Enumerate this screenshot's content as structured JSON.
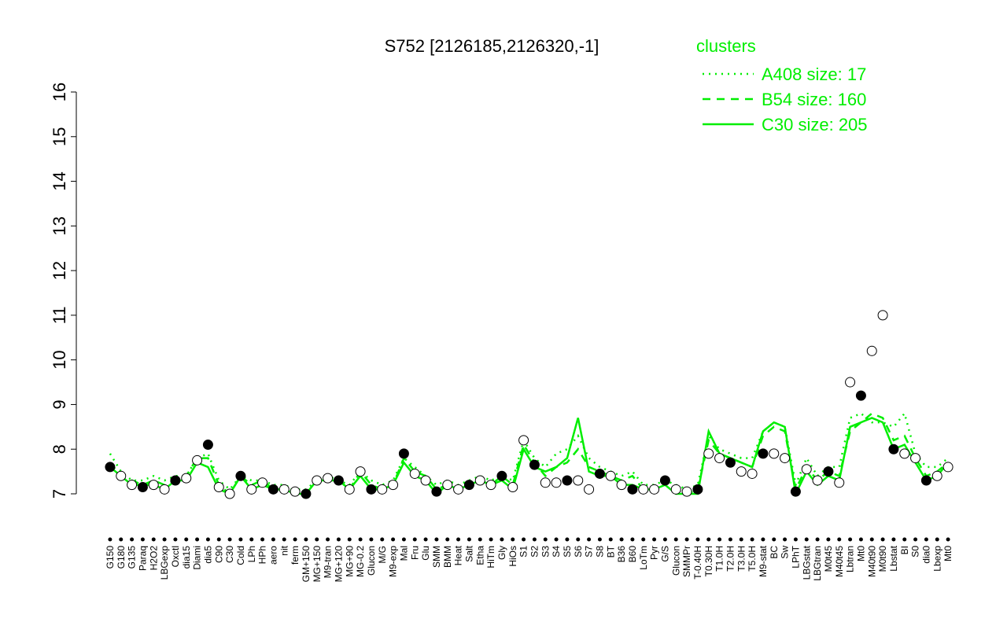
{
  "chart_data": {
    "type": "line",
    "title": "S752 [2126185,2126320,-1]",
    "legend_title": "clusters",
    "legend_color": "#00ee00",
    "point_color": "#000000",
    "categories": [
      "G150",
      "G180",
      "G135",
      "Paraq",
      "H2O2",
      "LBGexp",
      "Oxctl",
      "dia15",
      "Diami",
      "dia5",
      "C90",
      "C30",
      "Cold",
      "LPh",
      "HPh",
      "aero",
      "nit",
      "ferm",
      "GM+150",
      "MG+150",
      "M9-tran",
      "MG+120",
      "MG+90",
      "MG-0.2",
      "Glucon",
      "M/G",
      "M9-exp",
      "Mal",
      "Fru",
      "Glu",
      "SMM",
      "BMM",
      "Heat",
      "Salt",
      "Etha",
      "HiTm",
      "Gly",
      "HiOs",
      "S1",
      "S2",
      "S3",
      "S4",
      "S5",
      "S6",
      "S7",
      "S8",
      "BT",
      "B36",
      "B60",
      "LoTm",
      "Pyr",
      "G/S",
      "Glucon",
      "SMMPr",
      "T-0.40H",
      "T0.30H",
      "T1.0H",
      "T2.0H",
      "T3.0H",
      "T5.0H",
      "M9-stat",
      "BC",
      "Sw",
      "LPhT",
      "LBGstat",
      "LBGtran",
      "M0t45",
      "M40t45",
      "Lbtran",
      "Mt0",
      "M40t90",
      "M0t90",
      "Lbstat",
      "BI",
      "S0",
      "dia0",
      "Lbexp",
      "Mt0"
    ],
    "values": [
      7.6,
      7.4,
      7.2,
      7.15,
      7.2,
      7.1,
      7.3,
      7.35,
      7.75,
      8.1,
      7.15,
      7.0,
      7.4,
      7.1,
      7.25,
      7.1,
      7.1,
      7.05,
      7.0,
      7.3,
      7.35,
      7.3,
      7.1,
      7.5,
      7.1,
      7.1,
      7.2,
      7.9,
      7.45,
      7.3,
      7.05,
      7.2,
      7.1,
      7.2,
      7.3,
      7.2,
      7.4,
      7.15,
      8.2,
      7.65,
      7.25,
      7.25,
      7.3,
      7.3,
      7.1,
      7.45,
      7.4,
      7.2,
      7.1,
      7.1,
      7.1,
      7.3,
      7.1,
      7.05,
      7.1,
      7.9,
      7.8,
      7.7,
      7.5,
      7.45,
      7.9,
      7.9,
      7.8,
      7.05,
      7.55,
      7.3,
      7.5,
      7.25,
      9.5,
      9.2,
      10.2,
      11.0,
      8.0,
      7.9,
      7.8,
      7.3,
      7.4,
      7.6
    ],
    "series": [
      {
        "name": "A408 size: 17",
        "style": "dotted",
        "color": "#00ee00",
        "values": [
          7.9,
          7.5,
          7.3,
          7.3,
          7.4,
          7.3,
          7.4,
          7.4,
          7.8,
          7.9,
          7.3,
          7.1,
          7.4,
          7.3,
          7.3,
          7.2,
          7.2,
          7.1,
          7.1,
          7.3,
          7.4,
          7.3,
          7.2,
          7.5,
          7.3,
          7.2,
          7.3,
          7.8,
          7.6,
          7.4,
          7.2,
          7.3,
          7.2,
          7.3,
          7.4,
          7.3,
          7.4,
          7.3,
          8.2,
          7.8,
          7.6,
          7.9,
          8.0,
          8.3,
          7.8,
          7.6,
          7.5,
          7.4,
          7.5,
          7.2,
          7.2,
          7.3,
          7.2,
          7.1,
          7.2,
          8.3,
          8.0,
          7.9,
          7.8,
          7.8,
          8.4,
          8.6,
          8.5,
          7.2,
          7.8,
          7.4,
          7.6,
          7.6,
          8.7,
          8.8,
          8.6,
          8.6,
          8.5,
          8.8,
          7.9,
          7.6,
          7.6,
          7.8
        ]
      },
      {
        "name": "B54 size: 160",
        "style": "dashed",
        "color": "#00ee00",
        "values": [
          7.7,
          7.4,
          7.3,
          7.2,
          7.3,
          7.2,
          7.3,
          7.4,
          7.8,
          7.8,
          7.2,
          7.0,
          7.4,
          7.2,
          7.3,
          7.1,
          7.1,
          7.1,
          7.0,
          7.3,
          7.4,
          7.3,
          7.1,
          7.5,
          7.2,
          7.1,
          7.2,
          7.8,
          7.5,
          7.4,
          7.1,
          7.2,
          7.1,
          7.2,
          7.3,
          7.2,
          7.4,
          7.2,
          8.1,
          7.7,
          7.4,
          7.6,
          7.7,
          8.0,
          7.6,
          7.5,
          7.4,
          7.3,
          7.4,
          7.1,
          7.1,
          7.3,
          7.1,
          7.0,
          7.1,
          8.2,
          7.9,
          7.8,
          7.7,
          7.6,
          8.3,
          8.5,
          8.4,
          7.1,
          7.6,
          7.3,
          7.5,
          7.4,
          8.4,
          8.6,
          8.8,
          8.7,
          8.2,
          8.3,
          7.8,
          7.4,
          7.5,
          7.7
        ]
      },
      {
        "name": "C30 size: 205",
        "style": "solid",
        "color": "#00ee00",
        "values": [
          7.6,
          7.4,
          7.2,
          7.2,
          7.2,
          7.1,
          7.3,
          7.3,
          7.7,
          7.6,
          7.1,
          7.0,
          7.4,
          7.1,
          7.2,
          7.1,
          7.1,
          7.0,
          7.0,
          7.3,
          7.3,
          7.3,
          7.1,
          7.4,
          7.1,
          7.1,
          7.2,
          7.7,
          7.4,
          7.3,
          7.0,
          7.2,
          7.1,
          7.2,
          7.3,
          7.2,
          7.3,
          7.1,
          8.0,
          7.6,
          7.5,
          7.6,
          7.8,
          8.7,
          7.5,
          7.4,
          7.4,
          7.2,
          7.2,
          7.1,
          7.1,
          7.2,
          7.0,
          7.0,
          7.0,
          8.4,
          7.9,
          7.8,
          7.7,
          7.6,
          8.4,
          8.6,
          8.5,
          7.0,
          7.5,
          7.2,
          7.4,
          7.3,
          8.5,
          8.6,
          8.7,
          8.6,
          8.0,
          8.1,
          7.7,
          7.3,
          7.4,
          7.7
        ]
      }
    ],
    "ylim": [
      7,
      16
    ],
    "yticks": [
      7,
      8,
      9,
      10,
      11,
      12,
      13,
      14,
      15,
      16
    ]
  }
}
